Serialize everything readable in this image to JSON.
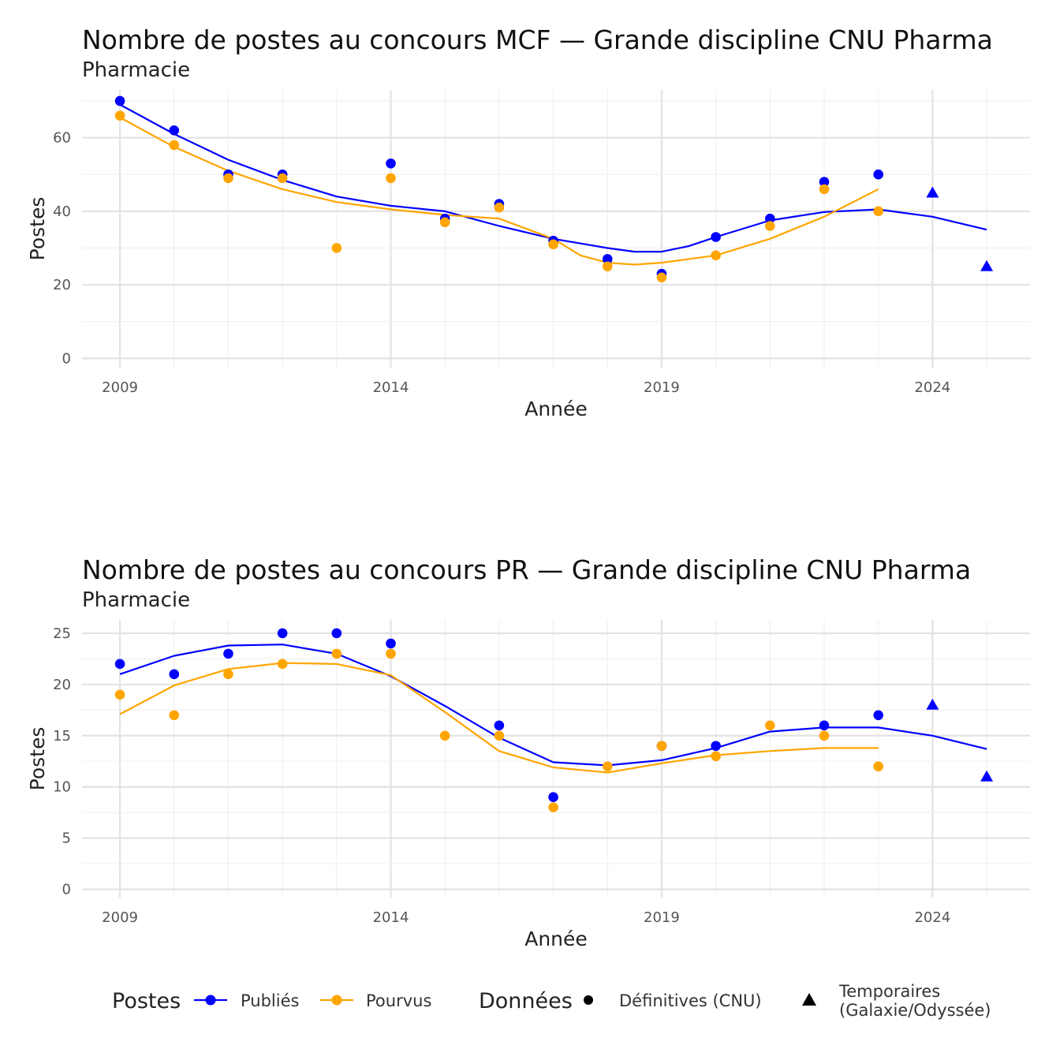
{
  "chart_data": [
    {
      "type": "scatter",
      "title": "Nombre de postes au concours MCF —  Grande discipline CNU Pharma",
      "subtitle": "Pharmacie",
      "xlabel": "Année",
      "ylabel": "Postes",
      "xlim": [
        2008.3,
        2025.8
      ],
      "ylim": [
        -2.5,
        73
      ],
      "x_ticks": [
        2009,
        2014,
        2019,
        2024
      ],
      "y_ticks": [
        0,
        20,
        40,
        60
      ],
      "grid": true,
      "series": [
        {
          "name": "Publiés",
          "color": "#0000ff",
          "points": [
            [
              2009,
              70
            ],
            [
              2010,
              62
            ],
            [
              2011,
              50
            ],
            [
              2012,
              50
            ],
            [
              2014,
              53
            ],
            [
              2015,
              38
            ],
            [
              2016,
              42
            ],
            [
              2017,
              32
            ],
            [
              2018,
              27
            ],
            [
              2019,
              23
            ],
            [
              2020,
              33
            ],
            [
              2021,
              38
            ],
            [
              2022,
              48
            ],
            [
              2023,
              50
            ]
          ],
          "temporary_points": [
            [
              2024,
              45
            ],
            [
              2025,
              25
            ]
          ],
          "smooth": [
            [
              2009,
              69
            ],
            [
              2010,
              61
            ],
            [
              2011,
              54
            ],
            [
              2012,
              48.5
            ],
            [
              2013,
              44
            ],
            [
              2014,
              41.5
            ],
            [
              2015,
              40
            ],
            [
              2016,
              36
            ],
            [
              2017,
              32.5
            ],
            [
              2018,
              30
            ],
            [
              2018.5,
              29
            ],
            [
              2019,
              29
            ],
            [
              2019.5,
              30.5
            ],
            [
              2020,
              33
            ],
            [
              2021,
              37.5
            ],
            [
              2022,
              39.8
            ],
            [
              2023,
              40.5
            ],
            [
              2024,
              38.5
            ],
            [
              2025,
              35
            ]
          ]
        },
        {
          "name": "Pourvus",
          "color": "#ffa500",
          "points": [
            [
              2009,
              66
            ],
            [
              2010,
              58
            ],
            [
              2011,
              49
            ],
            [
              2012,
              49
            ],
            [
              2013,
              30
            ],
            [
              2014,
              49
            ],
            [
              2015,
              37
            ],
            [
              2016,
              41
            ],
            [
              2017,
              31
            ],
            [
              2018,
              25
            ],
            [
              2019,
              22
            ],
            [
              2020,
              28
            ],
            [
              2021,
              36
            ],
            [
              2022,
              46
            ],
            [
              2023,
              40
            ]
          ],
          "smooth": [
            [
              2009,
              65.5
            ],
            [
              2010,
              57.5
            ],
            [
              2011,
              51
            ],
            [
              2012,
              46
            ],
            [
              2013,
              42.5
            ],
            [
              2014,
              40.5
            ],
            [
              2015,
              39
            ],
            [
              2016,
              38
            ],
            [
              2017,
              32.5
            ],
            [
              2017.5,
              28
            ],
            [
              2018,
              26
            ],
            [
              2018.5,
              25.5
            ],
            [
              2019,
              26
            ],
            [
              2020,
              28
            ],
            [
              2021,
              32.5
            ],
            [
              2022,
              38.5
            ],
            [
              2023,
              46
            ]
          ]
        }
      ]
    },
    {
      "type": "scatter",
      "title": "Nombre de postes au concours PR —  Grande discipline CNU Pharma",
      "subtitle": "Pharmacie",
      "xlabel": "Année",
      "ylabel": "Postes",
      "xlim": [
        2008.3,
        2025.8
      ],
      "ylim": [
        -0.8,
        26.3
      ],
      "x_ticks": [
        2009,
        2014,
        2019,
        2024
      ],
      "y_ticks": [
        0,
        5,
        10,
        15,
        20,
        25
      ],
      "grid": true,
      "series": [
        {
          "name": "Publiés",
          "color": "#0000ff",
          "points": [
            [
              2009,
              22
            ],
            [
              2010,
              21
            ],
            [
              2011,
              23
            ],
            [
              2012,
              25
            ],
            [
              2013,
              25
            ],
            [
              2014,
              24
            ],
            [
              2016,
              16
            ],
            [
              2017,
              9
            ],
            [
              2019,
              14
            ],
            [
              2020,
              14
            ],
            [
              2022,
              16
            ],
            [
              2023,
              17
            ]
          ],
          "temporary_points": [
            [
              2024,
              18
            ],
            [
              2025,
              11
            ]
          ],
          "smooth": [
            [
              2009,
              21
            ],
            [
              2010,
              22.8
            ],
            [
              2011,
              23.8
            ],
            [
              2012,
              23.9
            ],
            [
              2013,
              23
            ],
            [
              2014,
              20.8
            ],
            [
              2015,
              17.9
            ],
            [
              2016,
              14.8
            ],
            [
              2017,
              12.4
            ],
            [
              2018,
              12.1
            ],
            [
              2019,
              12.6
            ],
            [
              2020,
              13.8
            ],
            [
              2021,
              15.4
            ],
            [
              2022,
              15.8
            ],
            [
              2023,
              15.8
            ],
            [
              2024,
              15
            ],
            [
              2025,
              13.7
            ]
          ]
        },
        {
          "name": "Pourvus",
          "color": "#ffa500",
          "points": [
            [
              2009,
              19
            ],
            [
              2010,
              17
            ],
            [
              2011,
              21
            ],
            [
              2012,
              22
            ],
            [
              2013,
              23
            ],
            [
              2014,
              23
            ],
            [
              2015,
              15
            ],
            [
              2016,
              15
            ],
            [
              2017,
              8
            ],
            [
              2018,
              12
            ],
            [
              2019,
              14
            ],
            [
              2020,
              13
            ],
            [
              2021,
              16
            ],
            [
              2022,
              15
            ],
            [
              2023,
              12
            ]
          ],
          "smooth": [
            [
              2009,
              17.1
            ],
            [
              2010,
              19.9
            ],
            [
              2011,
              21.5
            ],
            [
              2012,
              22.1
            ],
            [
              2013,
              22
            ],
            [
              2014,
              20.9
            ],
            [
              2015,
              17.3
            ],
            [
              2016,
              13.5
            ],
            [
              2017,
              11.9
            ],
            [
              2018,
              11.4
            ],
            [
              2019,
              12.3
            ],
            [
              2020,
              13.1
            ],
            [
              2021,
              13.5
            ],
            [
              2022,
              13.8
            ],
            [
              2023,
              13.8
            ]
          ]
        }
      ]
    }
  ],
  "legend": {
    "postes_title": "Postes",
    "publies": "Publiés",
    "pourvus": "Pourvus",
    "donnees_title": "Données",
    "definitives": "Définitives (CNU)",
    "temporaires_line1": "Temporaires",
    "temporaires_line2": "(Galaxie/Odyssée)"
  }
}
